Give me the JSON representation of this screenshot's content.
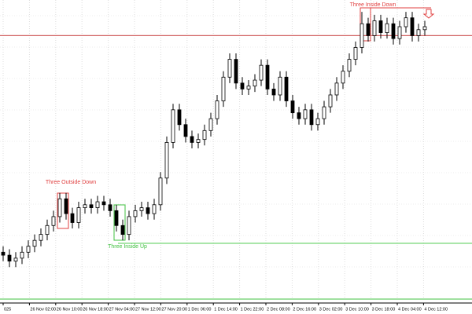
{
  "chart_data": {
    "type": "candlestick",
    "open": [
      15,
      14,
      12,
      13,
      15,
      17,
      19,
      21,
      24,
      27,
      33,
      28,
      25,
      30,
      31,
      30,
      32,
      31,
      29,
      24,
      21,
      27,
      29,
      30,
      28,
      31,
      40,
      52,
      63,
      58,
      54,
      52,
      53,
      56,
      60,
      66,
      74,
      80,
      72,
      70,
      71,
      73,
      78,
      70,
      68,
      74,
      66,
      62,
      60,
      63,
      58,
      60,
      64,
      68,
      72,
      76,
      80,
      84,
      92,
      88,
      93,
      89,
      92,
      87,
      91,
      94,
      88,
      90
    ],
    "high": [
      17,
      16,
      15,
      17,
      19,
      21,
      23,
      26,
      29,
      35,
      35,
      30,
      32,
      33,
      33,
      34,
      34,
      33,
      31,
      26,
      29,
      31,
      32,
      32,
      33,
      42,
      54,
      65,
      65,
      60,
      56,
      55,
      58,
      62,
      68,
      76,
      82,
      82,
      74,
      73,
      75,
      80,
      80,
      72,
      76,
      76,
      68,
      64,
      65,
      65,
      62,
      66,
      70,
      74,
      78,
      82,
      86,
      96,
      94,
      95,
      95,
      94,
      94,
      93,
      96,
      96,
      92,
      93
    ],
    "low": [
      12,
      10,
      10,
      11,
      13,
      15,
      17,
      19,
      22,
      25,
      26,
      23,
      23,
      28,
      28,
      28,
      29,
      27,
      22,
      19,
      19,
      25,
      27,
      26,
      26,
      29,
      38,
      50,
      56,
      52,
      50,
      50,
      51,
      54,
      58,
      64,
      72,
      70,
      68,
      68,
      69,
      71,
      68,
      66,
      66,
      64,
      60,
      58,
      58,
      56,
      56,
      58,
      62,
      66,
      70,
      74,
      78,
      82,
      86,
      86,
      87,
      87,
      85,
      85,
      89,
      86,
      86,
      88
    ],
    "close": [
      14,
      12,
      13,
      15,
      17,
      19,
      21,
      24,
      27,
      33,
      28,
      25,
      30,
      31,
      30,
      32,
      31,
      29,
      24,
      21,
      27,
      29,
      30,
      28,
      31,
      40,
      52,
      63,
      58,
      54,
      52,
      53,
      56,
      60,
      66,
      74,
      80,
      72,
      70,
      71,
      73,
      78,
      70,
      68,
      74,
      66,
      62,
      60,
      63,
      58,
      60,
      64,
      68,
      72,
      76,
      80,
      84,
      92,
      88,
      93,
      89,
      92,
      87,
      91,
      94,
      88,
      90,
      91
    ],
    "ylim": [
      0,
      100
    ],
    "time_labels": [
      "025",
      "26 Nov 02:00",
      "26 Nov 10:00",
      "26 Nov 18:00",
      "27 Nov 04:00",
      "27 Nov 12:00",
      "27 Nov 20:00",
      "1 Dec 06:00",
      "1 Dec 14:00",
      "1 Dec 22:00",
      "2 Dec 08:00",
      "2 Dec 16:00",
      "3 Dec 02:00",
      "3 Dec 10:00",
      "3 Dec 18:00",
      "4 Dec 04:00",
      "4 Dec 12:00"
    ],
    "levels": [
      {
        "value": 88,
        "color": "#d06060"
      },
      {
        "value": 18,
        "color": "#60d060"
      }
    ],
    "annotations": [
      {
        "text": "Three Outside Down",
        "color": "#e04040"
      },
      {
        "text": "Three Inside Up",
        "color": "#40c040"
      },
      {
        "text": "Three Inside Down",
        "color": "#e04040"
      }
    ],
    "grid": true
  }
}
